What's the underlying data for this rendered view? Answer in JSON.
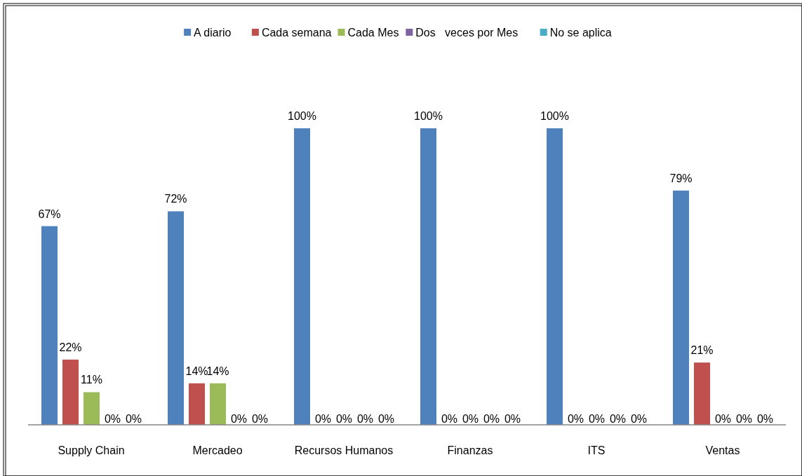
{
  "chart_data": {
    "type": "bar",
    "categories": [
      "Supply Chain",
      "Mercadeo",
      "Recursos Humanos",
      "Finanzas",
      "ITS",
      "Ventas"
    ],
    "legend": "top",
    "series": [
      {
        "name": "A diario",
        "color": "#4f81bd",
        "values": [
          67,
          72,
          100,
          100,
          100,
          79
        ],
        "value_labels": [
          "67%",
          "72%",
          "100%",
          "100%",
          "100%",
          "79%"
        ]
      },
      {
        "name": "Cada semana",
        "color": "#c0504d",
        "values": [
          22,
          14,
          0,
          0,
          0,
          21
        ],
        "value_labels": [
          "22%",
          "14%",
          "0%",
          "0%",
          "0%",
          "21%"
        ]
      },
      {
        "name": "Cada Mes",
        "color": "#9bbb59",
        "values": [
          11,
          14,
          0,
          0,
          0,
          0
        ],
        "value_labels": [
          "11%",
          "14%",
          "0%",
          "0%",
          "0%",
          "0%"
        ]
      },
      {
        "name": "Dos   veces por Mes",
        "color": "#8064a2",
        "values": [
          0,
          0,
          0,
          0,
          0,
          0
        ],
        "value_labels": [
          "0%",
          "0%",
          "0%",
          "0%",
          "0%",
          "0%"
        ]
      },
      {
        "name": "No se aplica",
        "color": "#4bacc6",
        "values": [
          0,
          0,
          0,
          0,
          0,
          0
        ],
        "value_labels": [
          "0%",
          "0%",
          "0%",
          "0%",
          "0%",
          "0%"
        ]
      }
    ]
  }
}
